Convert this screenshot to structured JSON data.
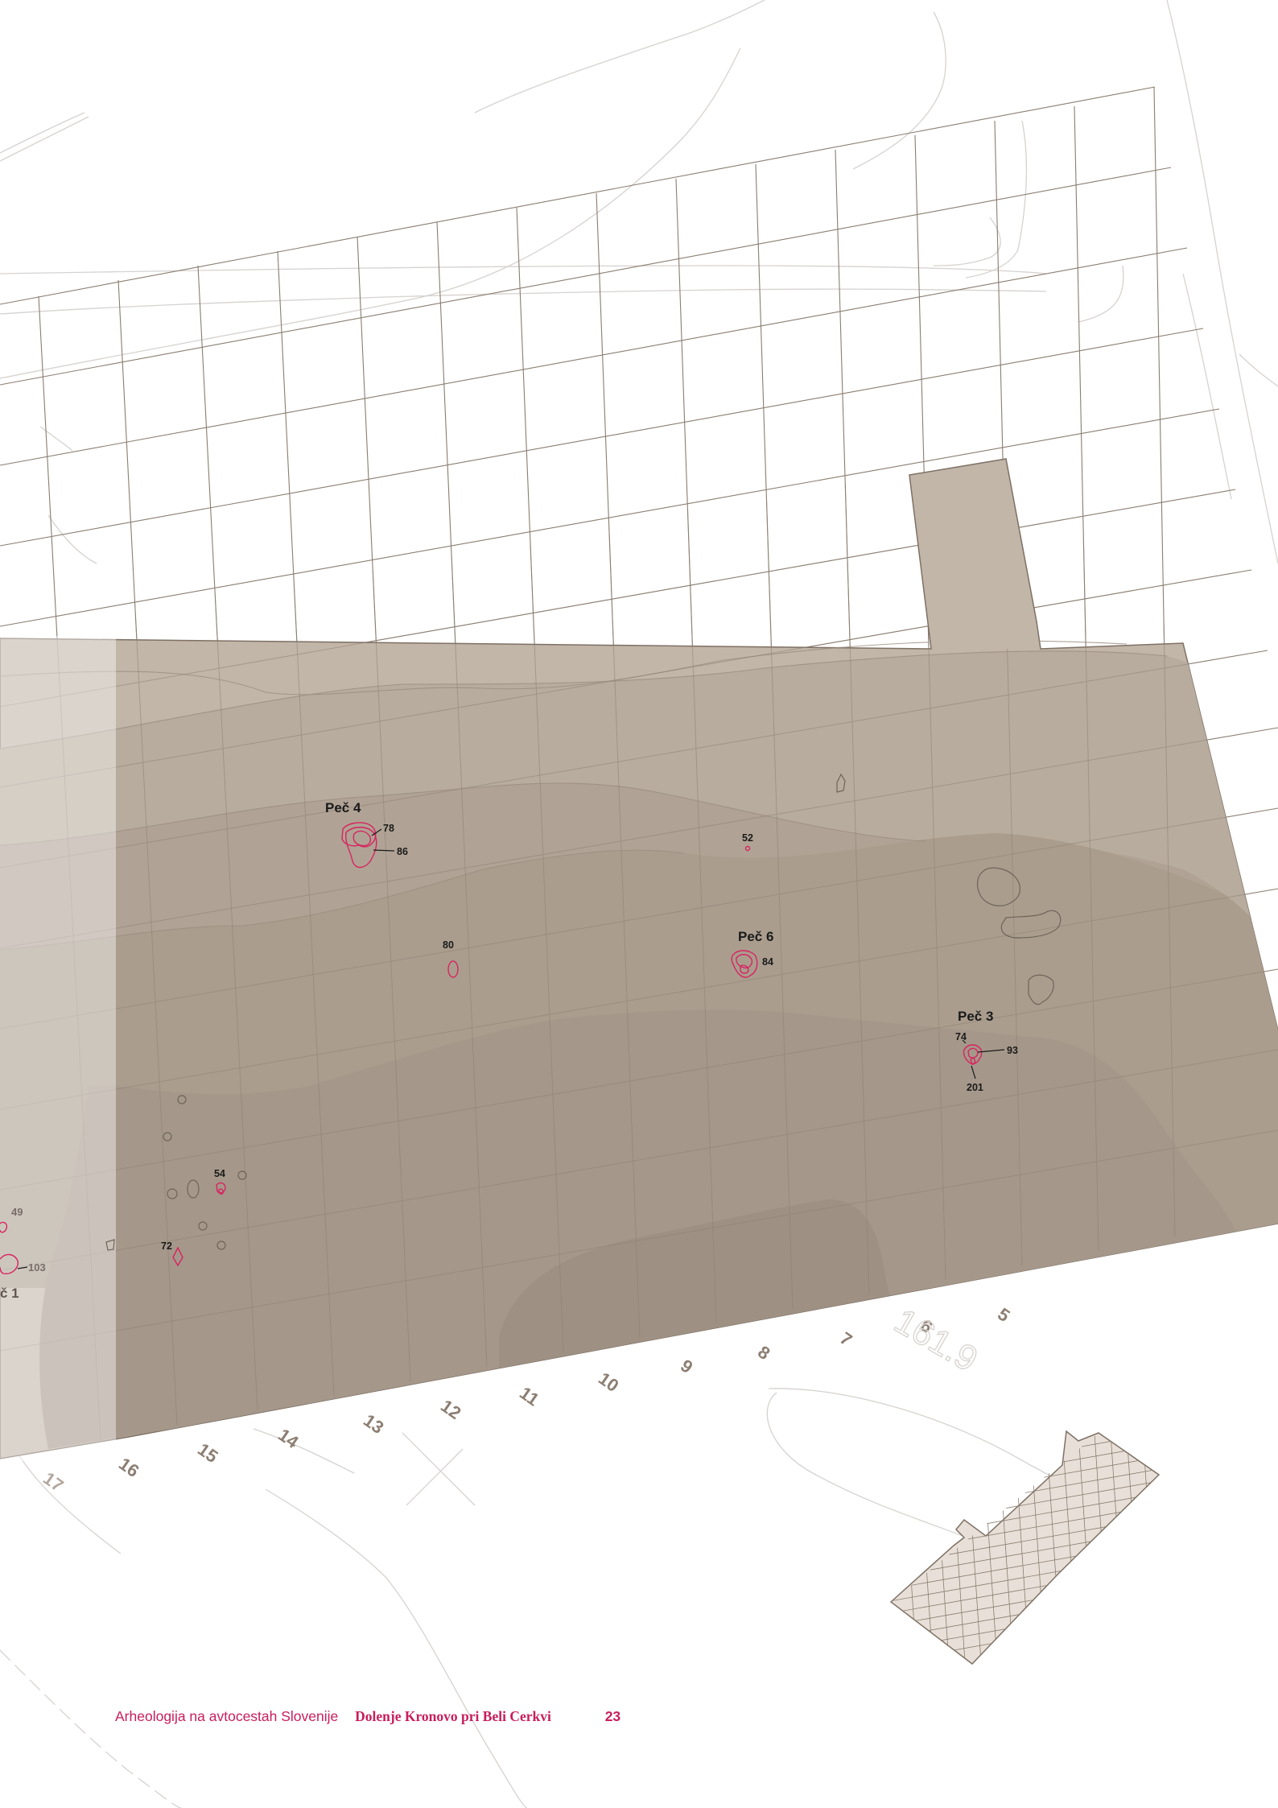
{
  "ovens": [
    {
      "label": "Peč 4",
      "features": [
        "78",
        "86"
      ]
    },
    {
      "label": "Peč 6",
      "features": [
        "84"
      ]
    },
    {
      "label": "Peč 3",
      "features": [
        "74",
        "93",
        "201"
      ]
    },
    {
      "label": "č 1",
      "features": [
        "103"
      ]
    }
  ],
  "features": [
    "52",
    "80",
    "54",
    "72",
    "49"
  ],
  "grid_numbers": [
    "5",
    "6",
    "7",
    "8",
    "9",
    "10",
    "11",
    "12",
    "13",
    "14",
    "15",
    "16",
    "17"
  ],
  "elevation_label": "161.9",
  "footer": {
    "series": "Arheologija na avtocestah Slovenije",
    "title": "Dolenje Kronovo pri Beli Cerkvi",
    "page": "23"
  },
  "colors": {
    "excavation_fill": "#c2b6a8",
    "contour_shade": "#a3978a",
    "feature_outline": "#d8245f",
    "grid_line": "#8a7d70",
    "footer_text": "#c81e5c"
  }
}
